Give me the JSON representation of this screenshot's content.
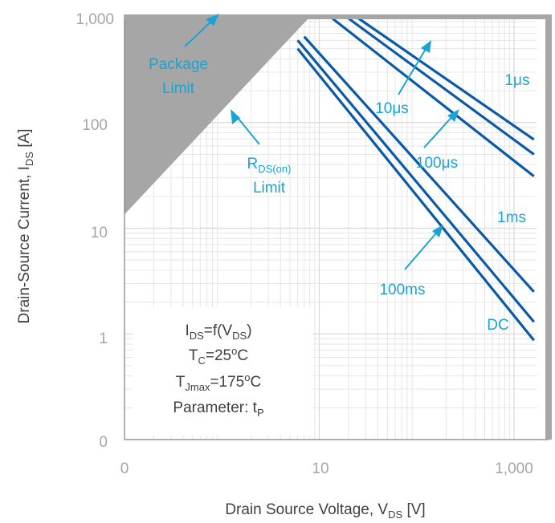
{
  "chart_data": {
    "type": "line",
    "title": "",
    "xlabel": "Drain Source Voltage, V",
    "xlabel_sub": "DS",
    "xlabel_unit": "[V]",
    "ylabel": "Drain-Source Current, I",
    "ylabel_sub": "DS",
    "ylabel_unit": "[A]",
    "x_scale": "log",
    "y_scale": "log",
    "xlim": [
      0.1,
      1700
    ],
    "ylim": [
      0.1,
      1000
    ],
    "x_ticks": [
      {
        "value": 0.1,
        "label": "0"
      },
      {
        "value": 10,
        "label": "10"
      },
      {
        "value": 1000,
        "label": "1,000"
      }
    ],
    "y_ticks": [
      {
        "value": 0.1,
        "label": "0"
      },
      {
        "value": 1,
        "label": "1"
      },
      {
        "value": 10,
        "label": "10"
      },
      {
        "value": 100,
        "label": "100"
      },
      {
        "value": 1000,
        "label": "1,000"
      }
    ],
    "grid": true,
    "colors": {
      "series": "#0b5aa8",
      "annotation": "#1aa3d4",
      "limit_fill": "#a6a6a6",
      "grid_major": "#d9d9d9",
      "grid_minor": "#e6e6e6"
    },
    "series": [
      {
        "label": "1μs",
        "x": [
          24,
          1600
        ],
        "y": [
          1000,
          69
        ]
      },
      {
        "label": "10μs",
        "x": [
          19,
          1600
        ],
        "y": [
          1000,
          50
        ]
      },
      {
        "label": "100μs",
        "x": [
          13,
          1600
        ],
        "y": [
          1000,
          31
        ]
      },
      {
        "label": "1ms",
        "x": [
          7,
          1600
        ],
        "y": [
          650,
          2.5
        ]
      },
      {
        "label": "100ms",
        "x": [
          6,
          1600
        ],
        "y": [
          600,
          1.3
        ]
      },
      {
        "label": "DC",
        "x": [
          6,
          1600
        ],
        "y": [
          500,
          0.87
        ]
      }
    ],
    "limits": [
      {
        "name": "Package Limit",
        "y": 1000
      },
      {
        "name": "R_DS(on) Limit",
        "x": [
          0.1,
          8
        ],
        "y": [
          13.5,
          1000
        ]
      }
    ],
    "annotations": {
      "package_limit": [
        "Package",
        "Limit"
      ],
      "rdson_main": "R",
      "rdson_sub": "DS(on)",
      "rdson_line2": "Limit",
      "us1": "1μs",
      "us10": "10μs",
      "us100": "100μs",
      "ms1": "1ms",
      "ms100": "100ms",
      "dc": "DC"
    },
    "conditions": {
      "line1": {
        "a": "I",
        "a_sub": "DS",
        "b": "=f(V",
        "b_sub": "DS",
        "c": ")"
      },
      "line2": {
        "a": "T",
        "a_sub": "C",
        "b": "=25",
        "b_sup": "o",
        "c": "C"
      },
      "line3": {
        "a": "T",
        "a_sub": "Jmax",
        "b": "=175",
        "b_sup": "o",
        "c": "C"
      },
      "line4": {
        "a": "Parameter: t",
        "a_sub": "P"
      }
    }
  }
}
